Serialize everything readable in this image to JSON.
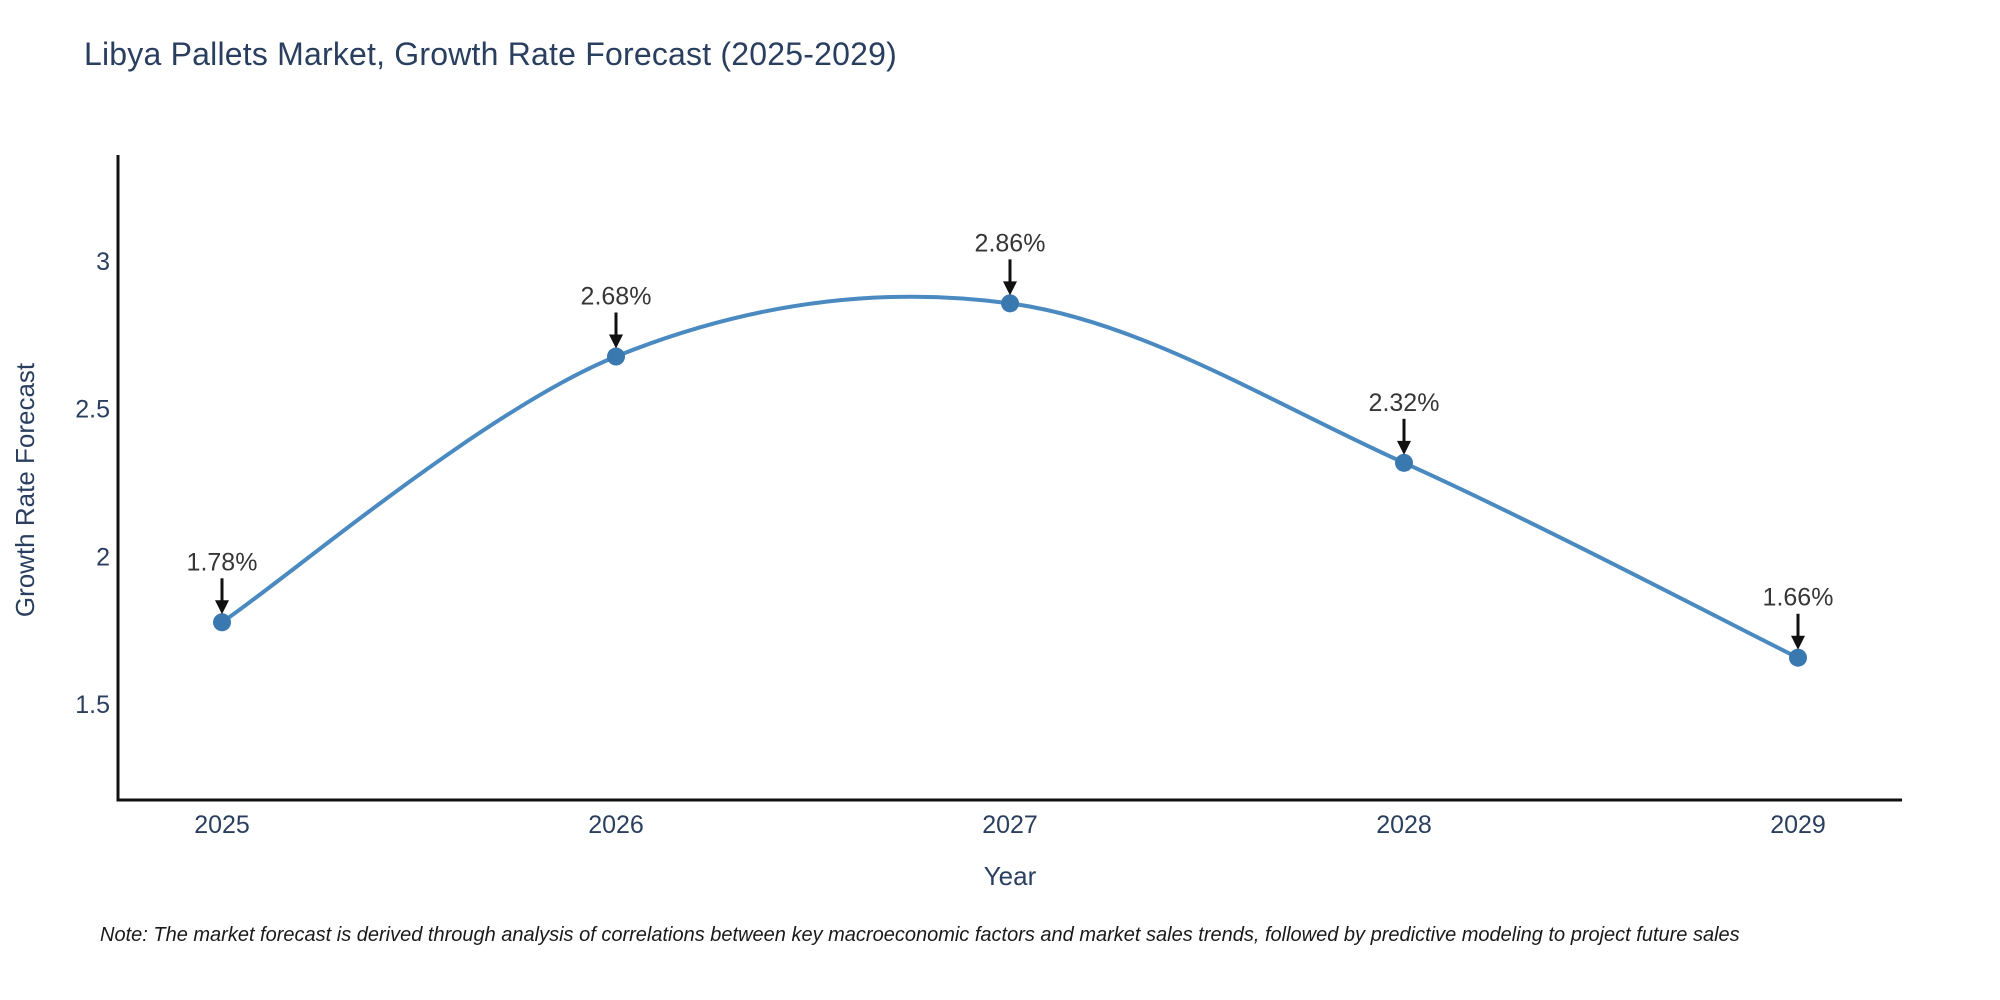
{
  "title": "Libya Pallets Market, Growth Rate Forecast (2025-2029)",
  "note": "Note: The market forecast is derived through analysis of correlations between key macroeconomic factors and market sales trends, followed by predictive modeling to project future sales",
  "chart_data": {
    "type": "line",
    "title": "Libya Pallets Market, Growth Rate Forecast (2025-2029)",
    "xlabel": "Year",
    "ylabel": "Growth Rate Forecast",
    "categories": [
      "2025",
      "2026",
      "2027",
      "2028",
      "2029"
    ],
    "values": [
      1.78,
      2.68,
      2.86,
      2.32,
      1.66
    ],
    "point_labels": [
      "1.78%",
      "2.68%",
      "2.86%",
      "2.32%",
      "1.66%"
    ],
    "yticks": [
      1.5,
      2,
      2.5,
      3
    ],
    "ytick_labels": [
      "1.5",
      "2",
      "2.5",
      "3"
    ],
    "ylim": [
      1.18,
      3.36
    ],
    "line_shape": "spline",
    "grid": false,
    "legend_position": "none",
    "annotation_arrows": true,
    "colors": {
      "line": "#4a8ac0",
      "marker": "#3a78b0",
      "axis": "#111111",
      "chart_text": "#2a3f5f",
      "annotation_text": "#363636",
      "arrow": "#111111",
      "note_text": "#1a1a1a",
      "background": "#ffffff"
    }
  }
}
